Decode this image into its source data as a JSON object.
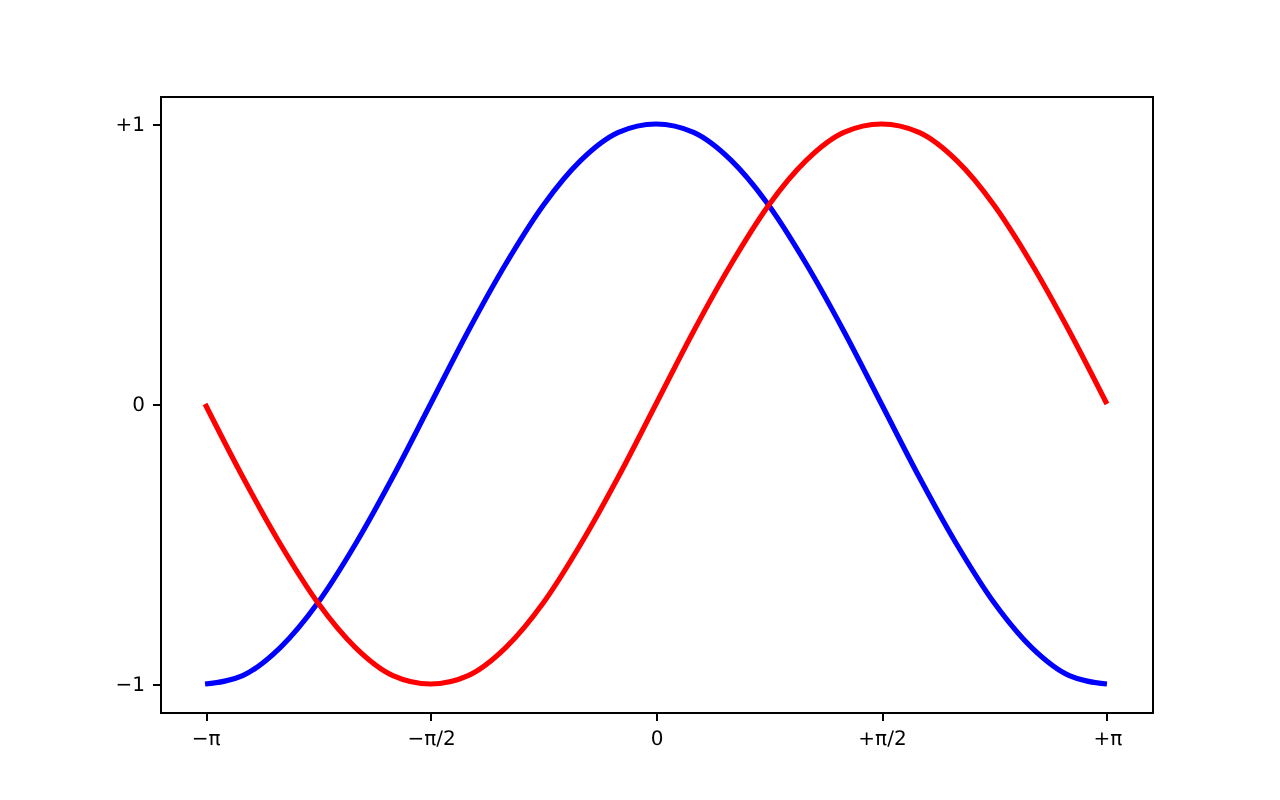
{
  "chart_data": {
    "type": "line",
    "x": [
      -3.142,
      -2.88,
      -2.618,
      -2.356,
      -2.094,
      -1.833,
      -1.571,
      -1.309,
      -1.047,
      -0.785,
      -0.524,
      -0.262,
      0,
      0.262,
      0.524,
      0.785,
      1.047,
      1.309,
      1.571,
      1.833,
      2.094,
      2.356,
      2.618,
      2.88,
      3.142
    ],
    "series": [
      {
        "color": "#0000ff",
        "values": [
          -1,
          -0.97,
          -0.87,
          -0.71,
          -0.5,
          -0.26,
          0,
          0.26,
          0.5,
          0.71,
          0.87,
          0.97,
          1,
          0.97,
          0.87,
          0.71,
          0.5,
          0.26,
          0,
          -0.26,
          -0.5,
          -0.71,
          -0.87,
          -0.97,
          -1
        ]
      },
      {
        "color": "#ff0000",
        "values": [
          0,
          -0.26,
          -0.5,
          -0.71,
          -0.87,
          -0.97,
          -1,
          -0.97,
          -0.87,
          -0.71,
          -0.5,
          -0.26,
          0,
          0.26,
          0.5,
          0.71,
          0.87,
          0.97,
          1,
          0.97,
          0.87,
          0.71,
          0.5,
          0.26,
          0
        ]
      }
    ],
    "xlim": [
      -3.456,
      3.456
    ],
    "ylim": [
      -1.1,
      1.1
    ],
    "xticks": [
      {
        "value": -3.142,
        "label": "−π"
      },
      {
        "value": -1.571,
        "label": "−π/2"
      },
      {
        "value": 0,
        "label": "0"
      },
      {
        "value": 1.571,
        "label": "+π/2"
      },
      {
        "value": 3.142,
        "label": "+π"
      }
    ],
    "yticks": [
      {
        "value": -1,
        "label": "−1"
      },
      {
        "value": 0,
        "label": "0"
      },
      {
        "value": 1,
        "label": "+1"
      }
    ],
    "grid": false,
    "legend": false,
    "line_style": "solid"
  }
}
